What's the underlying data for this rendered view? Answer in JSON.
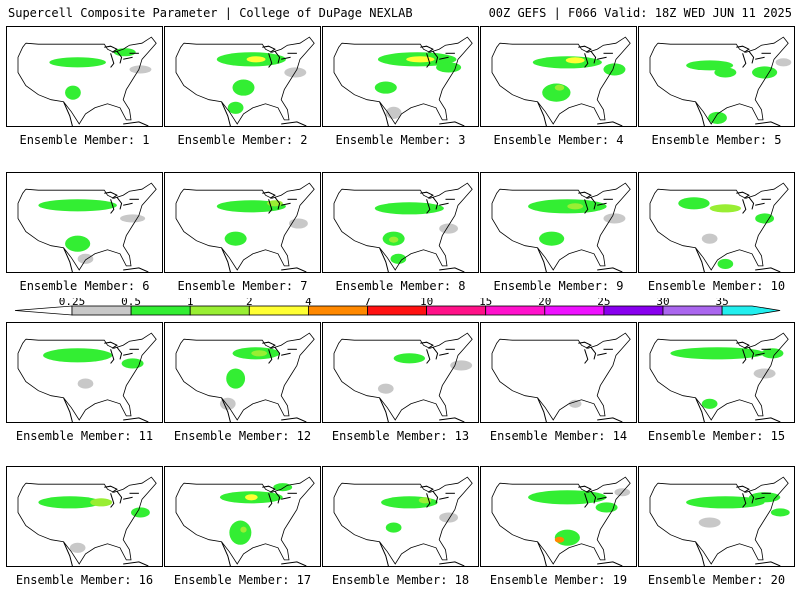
{
  "header": {
    "title": "Supercell Composite Parameter | College of DuPage NEXLAB",
    "run_info": "00Z GEFS | F066 Valid: 18Z WED JUN 11 2025"
  },
  "legend": {
    "ticks": [
      "0.25",
      "0.5",
      "1",
      "2",
      "4",
      "7",
      "10",
      "15",
      "20",
      "25",
      "30",
      "35"
    ],
    "colors": [
      "#c8c8c8",
      "#33ee33",
      "#99ee33",
      "#ffff33",
      "#ff8800",
      "#ff1111",
      "#ff1188",
      "#ff11cc",
      "#ee11ff",
      "#8800ee",
      "#aa66ee",
      "#22eeee"
    ]
  },
  "panels": [
    {
      "label": "Ensemble Member: 1",
      "fill": [
        [
          0.45,
          0.35,
          0.18,
          0.05,
          1
        ],
        [
          0.75,
          0.25,
          0.07,
          0.04,
          1
        ],
        [
          0.42,
          0.65,
          0.05,
          0.07,
          1
        ],
        [
          0.85,
          0.42,
          0.07,
          0.04,
          0
        ]
      ]
    },
    {
      "label": "Ensemble Member: 2",
      "fill": [
        [
          0.55,
          0.32,
          0.22,
          0.07,
          1
        ],
        [
          0.58,
          0.32,
          0.06,
          0.03,
          3
        ],
        [
          0.5,
          0.6,
          0.07,
          0.08,
          1
        ],
        [
          0.45,
          0.8,
          0.05,
          0.06,
          1
        ],
        [
          0.83,
          0.45,
          0.07,
          0.05,
          0
        ]
      ]
    },
    {
      "label": "Ensemble Member: 3",
      "fill": [
        [
          0.6,
          0.32,
          0.25,
          0.07,
          1
        ],
        [
          0.62,
          0.32,
          0.09,
          0.03,
          3
        ],
        [
          0.4,
          0.6,
          0.07,
          0.06,
          1
        ],
        [
          0.8,
          0.4,
          0.08,
          0.05,
          1
        ],
        [
          0.45,
          0.85,
          0.05,
          0.06,
          0
        ]
      ]
    },
    {
      "label": "Ensemble Member: 4",
      "fill": [
        [
          0.55,
          0.35,
          0.22,
          0.06,
          1
        ],
        [
          0.6,
          0.33,
          0.06,
          0.03,
          3
        ],
        [
          0.48,
          0.65,
          0.09,
          0.09,
          1
        ],
        [
          0.5,
          0.6,
          0.03,
          0.03,
          2
        ],
        [
          0.85,
          0.42,
          0.07,
          0.06,
          1
        ]
      ]
    },
    {
      "label": "Ensemble Member: 5",
      "fill": [
        [
          0.45,
          0.38,
          0.15,
          0.05,
          1
        ],
        [
          0.55,
          0.45,
          0.07,
          0.05,
          1
        ],
        [
          0.8,
          0.45,
          0.08,
          0.06,
          1
        ],
        [
          0.5,
          0.9,
          0.06,
          0.06,
          1
        ],
        [
          0.92,
          0.35,
          0.05,
          0.04,
          0
        ]
      ]
    },
    {
      "label": "Ensemble Member: 6",
      "fill": [
        [
          0.45,
          0.32,
          0.25,
          0.06,
          1
        ],
        [
          0.45,
          0.7,
          0.08,
          0.08,
          1
        ],
        [
          0.8,
          0.45,
          0.08,
          0.04,
          0
        ],
        [
          0.5,
          0.85,
          0.05,
          0.05,
          0
        ]
      ]
    },
    {
      "label": "Ensemble Member: 7",
      "fill": [
        [
          0.55,
          0.33,
          0.22,
          0.06,
          1
        ],
        [
          0.7,
          0.3,
          0.05,
          0.03,
          2
        ],
        [
          0.45,
          0.65,
          0.07,
          0.07,
          1
        ],
        [
          0.85,
          0.5,
          0.06,
          0.05,
          0
        ]
      ]
    },
    {
      "label": "Ensemble Member: 8",
      "fill": [
        [
          0.55,
          0.35,
          0.22,
          0.06,
          1
        ],
        [
          0.45,
          0.65,
          0.07,
          0.07,
          1
        ],
        [
          0.45,
          0.66,
          0.03,
          0.03,
          2
        ],
        [
          0.8,
          0.55,
          0.06,
          0.05,
          0
        ],
        [
          0.48,
          0.85,
          0.05,
          0.05,
          1
        ]
      ]
    },
    {
      "label": "Ensemble Member: 9",
      "fill": [
        [
          0.55,
          0.33,
          0.25,
          0.07,
          1
        ],
        [
          0.6,
          0.33,
          0.05,
          0.03,
          2
        ],
        [
          0.45,
          0.65,
          0.08,
          0.07,
          1
        ],
        [
          0.85,
          0.45,
          0.07,
          0.05,
          0
        ]
      ]
    },
    {
      "label": "Ensemble Member: 10",
      "fill": [
        [
          0.35,
          0.3,
          0.1,
          0.06,
          1
        ],
        [
          0.55,
          0.35,
          0.1,
          0.04,
          2
        ],
        [
          0.45,
          0.65,
          0.05,
          0.05,
          0
        ],
        [
          0.8,
          0.45,
          0.06,
          0.05,
          1
        ],
        [
          0.55,
          0.9,
          0.05,
          0.05,
          1
        ]
      ]
    },
    {
      "label": "Ensemble Member: 11",
      "fill": [
        [
          0.45,
          0.32,
          0.22,
          0.07,
          1
        ],
        [
          0.8,
          0.4,
          0.07,
          0.05,
          1
        ],
        [
          0.5,
          0.6,
          0.05,
          0.05,
          0
        ]
      ]
    },
    {
      "label": "Ensemble Member: 12",
      "fill": [
        [
          0.58,
          0.3,
          0.15,
          0.06,
          1
        ],
        [
          0.6,
          0.3,
          0.05,
          0.03,
          2
        ],
        [
          0.45,
          0.55,
          0.06,
          0.1,
          1
        ],
        [
          0.4,
          0.8,
          0.05,
          0.06,
          0
        ]
      ]
    },
    {
      "label": "Ensemble Member: 13",
      "fill": [
        [
          0.55,
          0.35,
          0.1,
          0.05,
          1
        ],
        [
          0.88,
          0.42,
          0.07,
          0.05,
          0
        ],
        [
          0.4,
          0.65,
          0.05,
          0.05,
          0
        ]
      ]
    },
    {
      "label": "Ensemble Member: 14",
      "fill": [
        [
          0.6,
          0.8,
          0.04,
          0.04,
          0
        ]
      ]
    },
    {
      "label": "Ensemble Member: 15",
      "fill": [
        [
          0.5,
          0.3,
          0.3,
          0.06,
          1
        ],
        [
          0.85,
          0.3,
          0.07,
          0.05,
          1
        ],
        [
          0.8,
          0.5,
          0.07,
          0.05,
          0
        ],
        [
          0.45,
          0.8,
          0.05,
          0.05,
          1
        ]
      ]
    },
    {
      "label": "Ensemble Member: 16",
      "fill": [
        [
          0.4,
          0.35,
          0.2,
          0.06,
          1
        ],
        [
          0.6,
          0.35,
          0.07,
          0.04,
          2
        ],
        [
          0.85,
          0.45,
          0.06,
          0.05,
          1
        ],
        [
          0.45,
          0.8,
          0.05,
          0.05,
          0
        ]
      ]
    },
    {
      "label": "Ensemble Member: 17",
      "fill": [
        [
          0.55,
          0.3,
          0.2,
          0.06,
          1
        ],
        [
          0.55,
          0.3,
          0.04,
          0.03,
          3
        ],
        [
          0.48,
          0.65,
          0.07,
          0.12,
          1
        ],
        [
          0.5,
          0.62,
          0.02,
          0.03,
          2
        ],
        [
          0.75,
          0.2,
          0.06,
          0.04,
          1
        ]
      ]
    },
    {
      "label": "Ensemble Member: 18",
      "fill": [
        [
          0.55,
          0.35,
          0.18,
          0.06,
          1
        ],
        [
          0.65,
          0.33,
          0.04,
          0.03,
          2
        ],
        [
          0.45,
          0.6,
          0.05,
          0.05,
          1
        ],
        [
          0.8,
          0.5,
          0.06,
          0.05,
          0
        ]
      ]
    },
    {
      "label": "Ensemble Member: 19",
      "fill": [
        [
          0.55,
          0.3,
          0.25,
          0.07,
          1
        ],
        [
          0.55,
          0.7,
          0.08,
          0.08,
          1
        ],
        [
          0.5,
          0.72,
          0.03,
          0.03,
          4
        ],
        [
          0.8,
          0.4,
          0.07,
          0.05,
          1
        ],
        [
          0.9,
          0.25,
          0.05,
          0.04,
          0
        ]
      ]
    },
    {
      "label": "Ensemble Member: 20",
      "fill": [
        [
          0.55,
          0.35,
          0.25,
          0.06,
          1
        ],
        [
          0.8,
          0.3,
          0.1,
          0.05,
          1
        ],
        [
          0.45,
          0.55,
          0.07,
          0.05,
          0
        ],
        [
          0.9,
          0.45,
          0.06,
          0.04,
          1
        ]
      ]
    }
  ]
}
